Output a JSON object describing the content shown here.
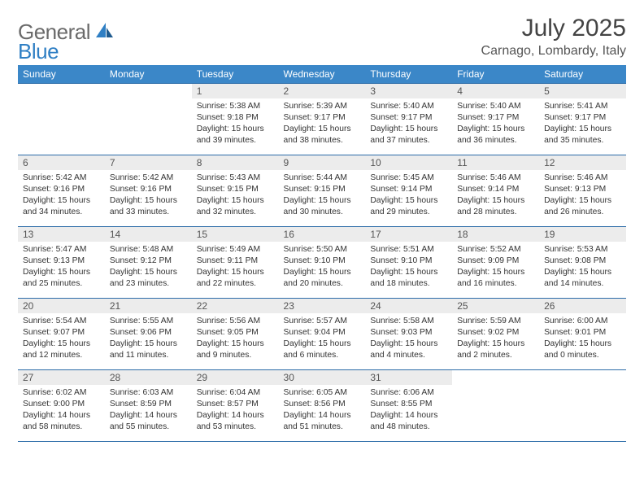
{
  "logo": {
    "text1": "General",
    "text2": "Blue"
  },
  "title": "July 2025",
  "location": "Carnago, Lombardy, Italy",
  "weekdays": [
    "Sunday",
    "Monday",
    "Tuesday",
    "Wednesday",
    "Thursday",
    "Friday",
    "Saturday"
  ],
  "colors": {
    "header_bg": "#3b87c8",
    "header_text": "#ffffff",
    "daynum_bg": "#ececec",
    "border": "#2c6ca8",
    "logo_gray": "#6a6a6a",
    "logo_blue": "#2f7fc4"
  },
  "weeks": [
    [
      {
        "num": "",
        "sunrise": "",
        "sunset": "",
        "daylight": ""
      },
      {
        "num": "",
        "sunrise": "",
        "sunset": "",
        "daylight": ""
      },
      {
        "num": "1",
        "sunrise": "Sunrise: 5:38 AM",
        "sunset": "Sunset: 9:18 PM",
        "daylight": "Daylight: 15 hours and 39 minutes."
      },
      {
        "num": "2",
        "sunrise": "Sunrise: 5:39 AM",
        "sunset": "Sunset: 9:17 PM",
        "daylight": "Daylight: 15 hours and 38 minutes."
      },
      {
        "num": "3",
        "sunrise": "Sunrise: 5:40 AM",
        "sunset": "Sunset: 9:17 PM",
        "daylight": "Daylight: 15 hours and 37 minutes."
      },
      {
        "num": "4",
        "sunrise": "Sunrise: 5:40 AM",
        "sunset": "Sunset: 9:17 PM",
        "daylight": "Daylight: 15 hours and 36 minutes."
      },
      {
        "num": "5",
        "sunrise": "Sunrise: 5:41 AM",
        "sunset": "Sunset: 9:17 PM",
        "daylight": "Daylight: 15 hours and 35 minutes."
      }
    ],
    [
      {
        "num": "6",
        "sunrise": "Sunrise: 5:42 AM",
        "sunset": "Sunset: 9:16 PM",
        "daylight": "Daylight: 15 hours and 34 minutes."
      },
      {
        "num": "7",
        "sunrise": "Sunrise: 5:42 AM",
        "sunset": "Sunset: 9:16 PM",
        "daylight": "Daylight: 15 hours and 33 minutes."
      },
      {
        "num": "8",
        "sunrise": "Sunrise: 5:43 AM",
        "sunset": "Sunset: 9:15 PM",
        "daylight": "Daylight: 15 hours and 32 minutes."
      },
      {
        "num": "9",
        "sunrise": "Sunrise: 5:44 AM",
        "sunset": "Sunset: 9:15 PM",
        "daylight": "Daylight: 15 hours and 30 minutes."
      },
      {
        "num": "10",
        "sunrise": "Sunrise: 5:45 AM",
        "sunset": "Sunset: 9:14 PM",
        "daylight": "Daylight: 15 hours and 29 minutes."
      },
      {
        "num": "11",
        "sunrise": "Sunrise: 5:46 AM",
        "sunset": "Sunset: 9:14 PM",
        "daylight": "Daylight: 15 hours and 28 minutes."
      },
      {
        "num": "12",
        "sunrise": "Sunrise: 5:46 AM",
        "sunset": "Sunset: 9:13 PM",
        "daylight": "Daylight: 15 hours and 26 minutes."
      }
    ],
    [
      {
        "num": "13",
        "sunrise": "Sunrise: 5:47 AM",
        "sunset": "Sunset: 9:13 PM",
        "daylight": "Daylight: 15 hours and 25 minutes."
      },
      {
        "num": "14",
        "sunrise": "Sunrise: 5:48 AM",
        "sunset": "Sunset: 9:12 PM",
        "daylight": "Daylight: 15 hours and 23 minutes."
      },
      {
        "num": "15",
        "sunrise": "Sunrise: 5:49 AM",
        "sunset": "Sunset: 9:11 PM",
        "daylight": "Daylight: 15 hours and 22 minutes."
      },
      {
        "num": "16",
        "sunrise": "Sunrise: 5:50 AM",
        "sunset": "Sunset: 9:10 PM",
        "daylight": "Daylight: 15 hours and 20 minutes."
      },
      {
        "num": "17",
        "sunrise": "Sunrise: 5:51 AM",
        "sunset": "Sunset: 9:10 PM",
        "daylight": "Daylight: 15 hours and 18 minutes."
      },
      {
        "num": "18",
        "sunrise": "Sunrise: 5:52 AM",
        "sunset": "Sunset: 9:09 PM",
        "daylight": "Daylight: 15 hours and 16 minutes."
      },
      {
        "num": "19",
        "sunrise": "Sunrise: 5:53 AM",
        "sunset": "Sunset: 9:08 PM",
        "daylight": "Daylight: 15 hours and 14 minutes."
      }
    ],
    [
      {
        "num": "20",
        "sunrise": "Sunrise: 5:54 AM",
        "sunset": "Sunset: 9:07 PM",
        "daylight": "Daylight: 15 hours and 12 minutes."
      },
      {
        "num": "21",
        "sunrise": "Sunrise: 5:55 AM",
        "sunset": "Sunset: 9:06 PM",
        "daylight": "Daylight: 15 hours and 11 minutes."
      },
      {
        "num": "22",
        "sunrise": "Sunrise: 5:56 AM",
        "sunset": "Sunset: 9:05 PM",
        "daylight": "Daylight: 15 hours and 9 minutes."
      },
      {
        "num": "23",
        "sunrise": "Sunrise: 5:57 AM",
        "sunset": "Sunset: 9:04 PM",
        "daylight": "Daylight: 15 hours and 6 minutes."
      },
      {
        "num": "24",
        "sunrise": "Sunrise: 5:58 AM",
        "sunset": "Sunset: 9:03 PM",
        "daylight": "Daylight: 15 hours and 4 minutes."
      },
      {
        "num": "25",
        "sunrise": "Sunrise: 5:59 AM",
        "sunset": "Sunset: 9:02 PM",
        "daylight": "Daylight: 15 hours and 2 minutes."
      },
      {
        "num": "26",
        "sunrise": "Sunrise: 6:00 AM",
        "sunset": "Sunset: 9:01 PM",
        "daylight": "Daylight: 15 hours and 0 minutes."
      }
    ],
    [
      {
        "num": "27",
        "sunrise": "Sunrise: 6:02 AM",
        "sunset": "Sunset: 9:00 PM",
        "daylight": "Daylight: 14 hours and 58 minutes."
      },
      {
        "num": "28",
        "sunrise": "Sunrise: 6:03 AM",
        "sunset": "Sunset: 8:59 PM",
        "daylight": "Daylight: 14 hours and 55 minutes."
      },
      {
        "num": "29",
        "sunrise": "Sunrise: 6:04 AM",
        "sunset": "Sunset: 8:57 PM",
        "daylight": "Daylight: 14 hours and 53 minutes."
      },
      {
        "num": "30",
        "sunrise": "Sunrise: 6:05 AM",
        "sunset": "Sunset: 8:56 PM",
        "daylight": "Daylight: 14 hours and 51 minutes."
      },
      {
        "num": "31",
        "sunrise": "Sunrise: 6:06 AM",
        "sunset": "Sunset: 8:55 PM",
        "daylight": "Daylight: 14 hours and 48 minutes."
      },
      {
        "num": "",
        "sunrise": "",
        "sunset": "",
        "daylight": ""
      },
      {
        "num": "",
        "sunrise": "",
        "sunset": "",
        "daylight": ""
      }
    ]
  ]
}
